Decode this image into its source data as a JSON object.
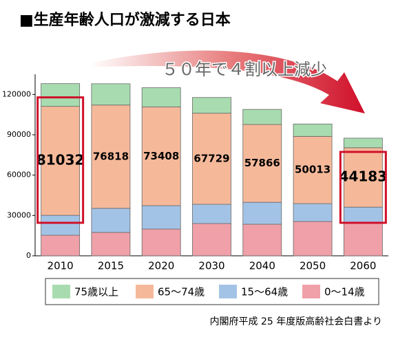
{
  "chart_data": {
    "type": "stacked_bar",
    "title": "■生産年齢人口が激減する日本",
    "annotation": "５０年で４割以上減少",
    "source": "内閣府平成 25 年度版高齢社会白書より",
    "categories": [
      "2010",
      "2015",
      "2020",
      "2030",
      "2040",
      "2050",
      "2060"
    ],
    "series": [
      {
        "name": "75歳以上",
        "color": "#a8dcb0",
        "values": [
          16900,
          15800,
          14300,
          11700,
          11200,
          9200,
          7100
        ]
      },
      {
        "name": "65〜74歳",
        "color": "#f5b99a",
        "values": [
          81032,
          76818,
          73408,
          67729,
          57866,
          50013,
          44183
        ],
        "labels": true
      },
      {
        "name": "15〜64歳",
        "color": "#a3c3e6",
        "values": [
          14800,
          17900,
          17400,
          14300,
          16300,
          13300,
          11700
        ]
      },
      {
        "name": "0〜14歳",
        "color": "#f0a0a8",
        "values": [
          15300,
          17400,
          19900,
          24000,
          23500,
          25500,
          24500
        ]
      }
    ],
    "highlight_categories": [
      0,
      6
    ],
    "ylim": [
      0,
      135000
    ],
    "yticks": [
      0,
      30000,
      60000,
      90000,
      120000
    ]
  }
}
